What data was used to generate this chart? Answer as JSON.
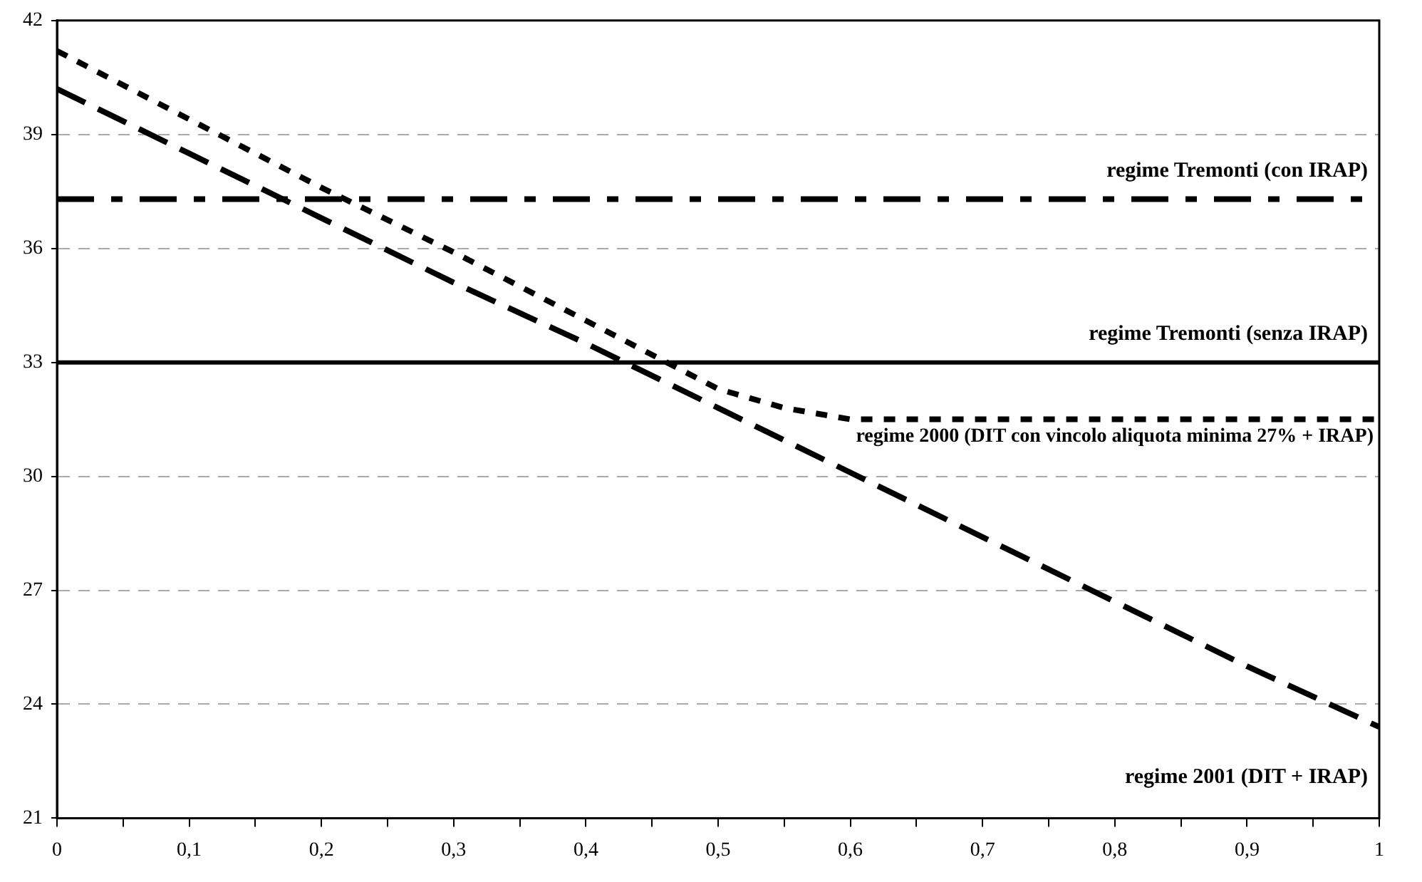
{
  "chart_data": {
    "type": "line",
    "xlim": [
      0,
      1
    ],
    "ylim": [
      21,
      42
    ],
    "xticks": [
      0,
      {
        "value": 0.05,
        "label": null
      },
      {
        "value": 0.1,
        "label": "0,1"
      },
      {
        "value": 0.15,
        "label": null
      },
      {
        "value": 0.2,
        "label": "0,2"
      },
      {
        "value": 0.25,
        "label": null
      },
      {
        "value": 0.3,
        "label": "0,3"
      },
      {
        "value": 0.35,
        "label": null
      },
      {
        "value": 0.4,
        "label": "0,4"
      },
      {
        "value": 0.45,
        "label": null
      },
      {
        "value": 0.5,
        "label": "0,5"
      },
      {
        "value": 0.55,
        "label": null
      },
      {
        "value": 0.6,
        "label": "0,6"
      },
      {
        "value": 0.65,
        "label": null
      },
      {
        "value": 0.7,
        "label": "0,7"
      },
      {
        "value": 0.75,
        "label": null
      },
      {
        "value": 0.8,
        "label": "0,8"
      },
      {
        "value": 0.85,
        "label": null
      },
      {
        "value": 0.9,
        "label": "0,9"
      },
      {
        "value": 0.95,
        "label": null
      },
      1
    ],
    "yticks": [
      21,
      24,
      27,
      30,
      33,
      36,
      39,
      42
    ],
    "grid": "y",
    "legend": false,
    "marker": "none",
    "series": [
      {
        "name": "regime Tremonti (con IRAP)",
        "color": "#000000",
        "line_style": "dashdot",
        "x": [
          0,
          1
        ],
        "values": [
          37.3,
          37.3
        ]
      },
      {
        "name": "regime Tremonti (senza IRAP)",
        "color": "#000000",
        "line_style": "solid",
        "x": [
          0,
          1
        ],
        "values": [
          33,
          33
        ]
      },
      {
        "name": "regime 2000 (DIT con vincolo aliquota minima 27% + IRAP)",
        "color": "#000000",
        "line_style": "dotted",
        "x": [
          0,
          0.1,
          0.2,
          0.3,
          0.4,
          0.5,
          0.55,
          0.6,
          0.7,
          0.8,
          0.9,
          1
        ],
        "values": [
          41.2,
          39.4,
          37.6,
          35.9,
          34.1,
          32.3,
          31.8,
          31.5,
          31.5,
          31.5,
          31.5,
          31.5
        ]
      },
      {
        "name": "regime 2001 (DIT + IRAP)",
        "color": "#000000",
        "line_style": "dashed",
        "x": [
          0,
          0.1,
          0.2,
          0.3,
          0.4,
          0.5,
          0.6,
          0.7,
          0.8,
          0.9,
          1
        ],
        "values": [
          40.2,
          38.5,
          36.8,
          35.1,
          33.5,
          31.8,
          30.1,
          28.4,
          26.7,
          25.0,
          23.4
        ]
      }
    ]
  }
}
